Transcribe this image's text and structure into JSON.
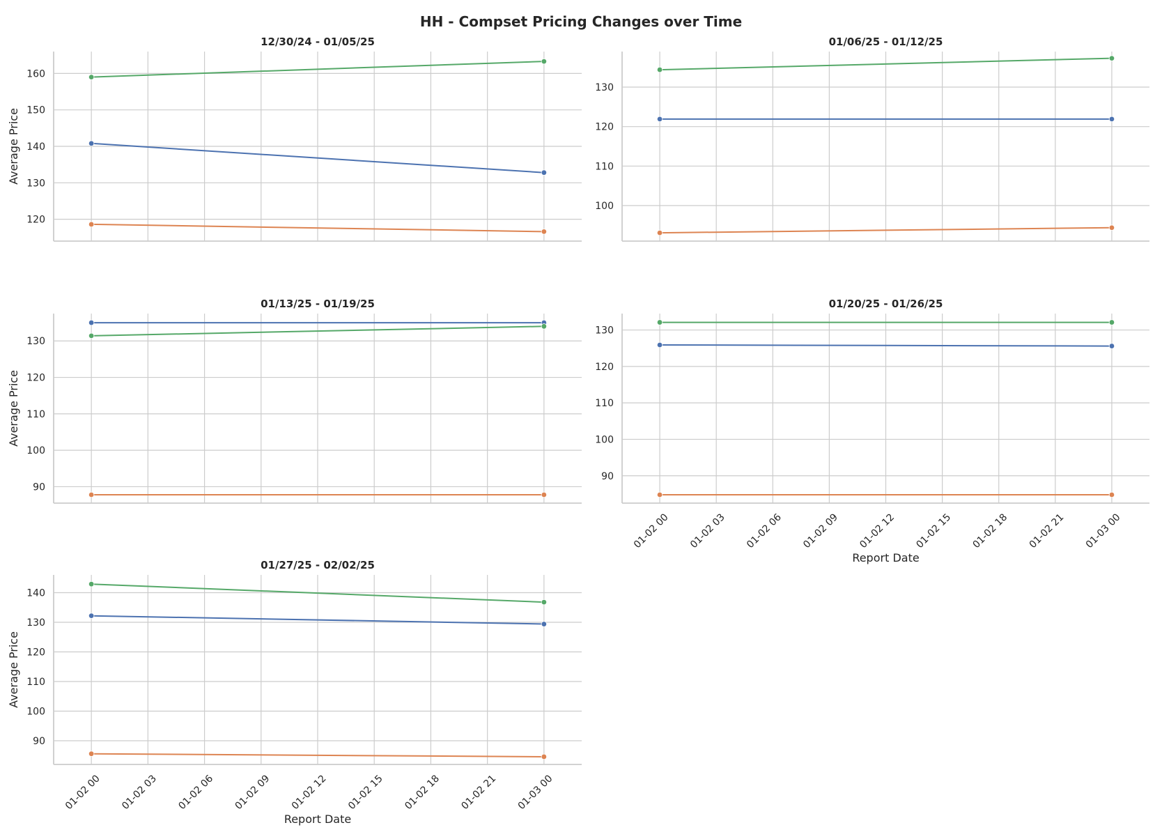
{
  "colors": {
    "series_blue": "#4c72b0",
    "series_orange": "#dd8452",
    "series_green": "#55a868",
    "grid": "#cccccc",
    "text": "#262626"
  },
  "chart_data": {
    "type": "line",
    "title": "HH - Compset Pricing Changes over Time",
    "grid": true,
    "shared_x": {
      "xlabel": "Report Date",
      "xlim": [
        "01-01 22",
        "01-03 02"
      ],
      "tick_labels": [
        "01-02 00",
        "01-02 03",
        "01-02 06",
        "01-02 09",
        "01-02 12",
        "01-02 15",
        "01-02 18",
        "01-02 21",
        "01-03 00"
      ],
      "x": [
        "01-02 00",
        "01-03 00"
      ]
    },
    "panels": [
      {
        "title": "12/30/24 - 01/05/25",
        "ylabel": "Average Price",
        "xlabel": "",
        "show_x_ticks": false,
        "ylim": [
          114,
          166
        ],
        "yticks": [
          120,
          130,
          140,
          150,
          160
        ],
        "series": [
          {
            "color": "#4c72b0",
            "values": [
              140.8,
              132.8
            ]
          },
          {
            "color": "#dd8452",
            "values": [
              118.6,
              116.6
            ]
          },
          {
            "color": "#55a868",
            "values": [
              159.0,
              163.3
            ]
          }
        ]
      },
      {
        "title": "01/06/25 - 01/12/25",
        "ylabel": "",
        "xlabel": "",
        "show_x_ticks": false,
        "ylim": [
          91,
          139
        ],
        "yticks": [
          100,
          110,
          120,
          130
        ],
        "series": [
          {
            "color": "#4c72b0",
            "values": [
              121.9,
              121.9
            ]
          },
          {
            "color": "#dd8452",
            "values": [
              93.1,
              94.4
            ]
          },
          {
            "color": "#55a868",
            "values": [
              134.4,
              137.3
            ]
          }
        ]
      },
      {
        "title": "01/13/25 - 01/19/25",
        "ylabel": "Average Price",
        "xlabel": "",
        "show_x_ticks": false,
        "ylim": [
          85.5,
          137.5
        ],
        "yticks": [
          90,
          100,
          110,
          120,
          130
        ],
        "series": [
          {
            "color": "#4c72b0",
            "values": [
              135.0,
              135.0
            ]
          },
          {
            "color": "#dd8452",
            "values": [
              87.8,
              87.8
            ]
          },
          {
            "color": "#55a868",
            "values": [
              131.4,
              134.0
            ]
          }
        ]
      },
      {
        "title": "01/20/25 - 01/26/25",
        "ylabel": "",
        "xlabel": "Report Date",
        "show_x_ticks": true,
        "ylim": [
          82.5,
          134.5
        ],
        "yticks": [
          90,
          100,
          110,
          120,
          130
        ],
        "series": [
          {
            "color": "#4c72b0",
            "values": [
              125.9,
              125.6
            ]
          },
          {
            "color": "#dd8452",
            "values": [
              84.8,
              84.8
            ]
          },
          {
            "color": "#55a868",
            "values": [
              132.1,
              132.1
            ]
          }
        ]
      },
      {
        "title": "01/27/25 - 02/02/25",
        "ylabel": "Average Price",
        "xlabel": "Report Date",
        "show_x_ticks": true,
        "ylim": [
          82,
          146
        ],
        "yticks": [
          90,
          100,
          110,
          120,
          130,
          140
        ],
        "series": [
          {
            "color": "#4c72b0",
            "values": [
              132.2,
              129.4
            ]
          },
          {
            "color": "#dd8452",
            "values": [
              85.6,
              84.6
            ]
          },
          {
            "color": "#55a868",
            "values": [
              142.9,
              136.8
            ]
          }
        ]
      }
    ]
  }
}
